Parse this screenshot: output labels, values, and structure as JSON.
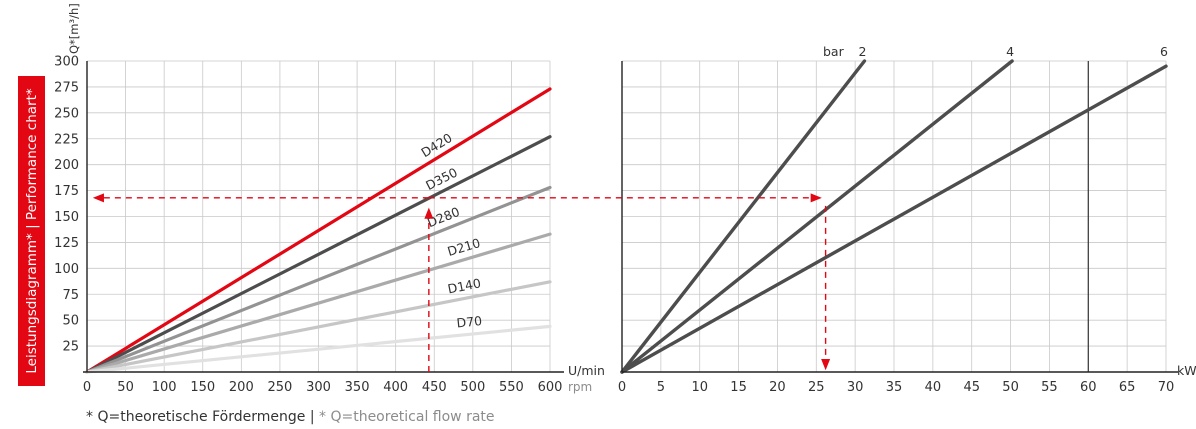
{
  "side_label": "Leistungsdiagramm* | Performance chart*",
  "footnote": {
    "de": "* Q=theoretische Fördermenge",
    "sep": " | ",
    "en": "* Q=theoretical flow rate"
  },
  "colors": {
    "red": "#e30613",
    "dark": "#4d4d4d",
    "grid": "#c9c9c9"
  },
  "chart_data": [
    {
      "type": "line",
      "ylabel": "Q*[m³/h]",
      "xlabel": "U/min",
      "xlabel2": "rpm",
      "xlim": [
        0,
        600
      ],
      "ylim": [
        0,
        300
      ],
      "x_ticks": [
        0,
        50,
        100,
        150,
        200,
        250,
        300,
        350,
        400,
        450,
        500,
        550,
        600
      ],
      "y_ticks": [
        25,
        50,
        75,
        100,
        125,
        150,
        175,
        200,
        225,
        250,
        275,
        300
      ],
      "series": [
        {
          "name": "D420",
          "x": [
            0,
            600
          ],
          "y": [
            0,
            273
          ],
          "color": "#e30613"
        },
        {
          "name": "D350",
          "x": [
            0,
            600
          ],
          "y": [
            0,
            227
          ],
          "color": "#4d4d4d"
        },
        {
          "name": "D280",
          "x": [
            0,
            600
          ],
          "y": [
            0,
            178
          ],
          "color": "#939393"
        },
        {
          "name": "D210",
          "x": [
            0,
            600
          ],
          "y": [
            0,
            133
          ],
          "color": "#aaaaaa"
        },
        {
          "name": "D140",
          "x": [
            0,
            600
          ],
          "y": [
            0,
            87
          ],
          "color": "#c6c6c6"
        },
        {
          "name": "D70",
          "x": [
            0,
            600
          ],
          "y": [
            0,
            44
          ],
          "color": "#e1e1e1"
        }
      ],
      "annotation": {
        "x": 443,
        "y": 168
      }
    },
    {
      "type": "line",
      "xlabel": "kW",
      "pressure_unit": "bar",
      "xlim": [
        0,
        70
      ],
      "ylim": [
        0,
        300
      ],
      "x_ticks": [
        0,
        5,
        10,
        15,
        20,
        25,
        30,
        35,
        40,
        45,
        50,
        55,
        60,
        65,
        70
      ],
      "series": [
        {
          "name": "2",
          "x": [
            0,
            31.2
          ],
          "y": [
            0,
            300
          ]
        },
        {
          "name": "4",
          "x": [
            0,
            50.2
          ],
          "y": [
            0,
            300
          ]
        },
        {
          "name": "6",
          "x": [
            0,
            70
          ],
          "y": [
            0,
            295
          ]
        }
      ],
      "annotation": {
        "x": 26.2,
        "y": 168
      }
    }
  ]
}
